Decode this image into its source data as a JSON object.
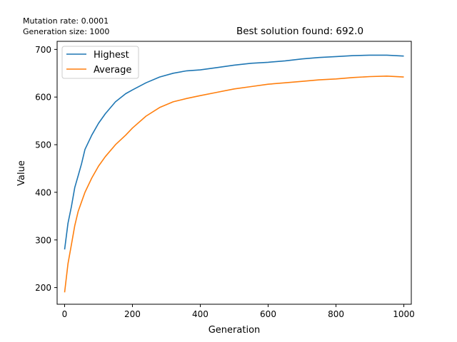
{
  "annotations": {
    "mutation_rate": "Mutation rate: 0.0001",
    "generation_size": "Generation size: 1000"
  },
  "chart_data": {
    "type": "line",
    "title": "Best solution found: 692.0",
    "xlabel": "Generation",
    "ylabel": "Value",
    "xlim": [
      -22,
      1022
    ],
    "ylim": [
      165,
      717
    ],
    "xticks": [
      0,
      200,
      400,
      600,
      800,
      1000
    ],
    "yticks": [
      200,
      300,
      400,
      500,
      600,
      700
    ],
    "grid": false,
    "legend_position": "upper-left",
    "x": [
      0,
      10,
      20,
      30,
      40,
      50,
      60,
      80,
      100,
      120,
      150,
      180,
      200,
      240,
      280,
      320,
      360,
      400,
      450,
      500,
      550,
      600,
      650,
      700,
      750,
      800,
      850,
      900,
      950,
      1000
    ],
    "series": [
      {
        "name": "Highest",
        "color": "#1f77b4",
        "values": [
          280,
          335,
          370,
          410,
          435,
          460,
          490,
          520,
          545,
          565,
          590,
          607,
          615,
          630,
          642,
          650,
          655,
          657,
          662,
          667,
          671,
          673,
          676,
          680,
          683,
          685,
          687,
          688,
          688,
          686
        ]
      },
      {
        "name": "Average",
        "color": "#ff7f0e",
        "values": [
          190,
          250,
          290,
          330,
          360,
          380,
          400,
          430,
          455,
          475,
          500,
          520,
          535,
          560,
          578,
          590,
          597,
          603,
          610,
          617,
          622,
          627,
          630,
          633,
          636,
          638,
          641,
          643,
          644,
          642
        ]
      }
    ]
  }
}
